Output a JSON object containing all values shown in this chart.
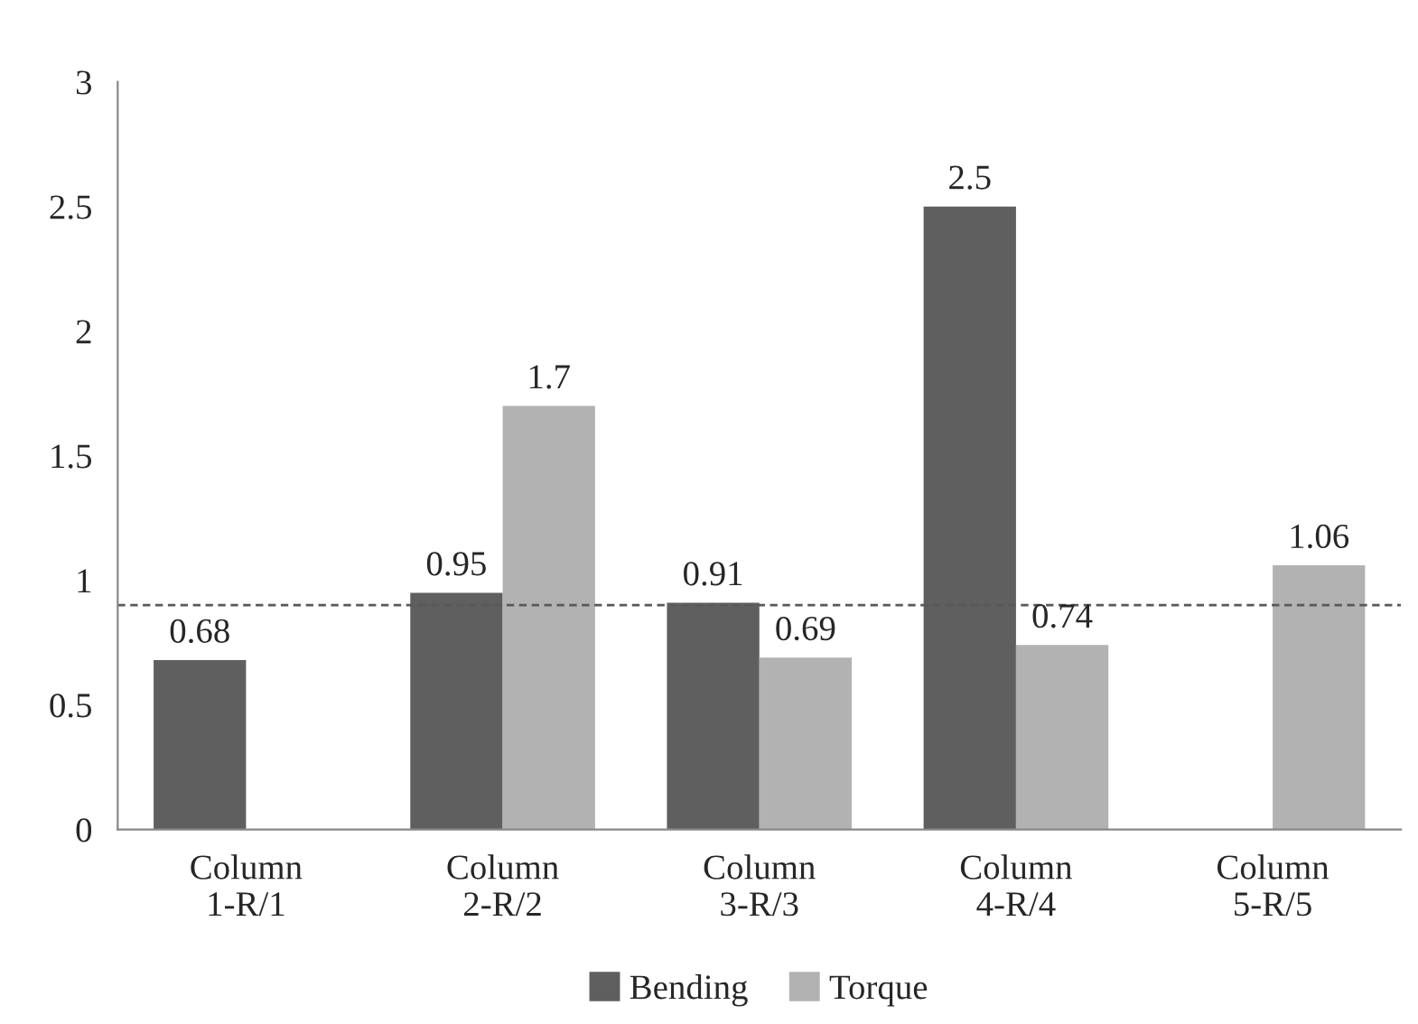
{
  "chart_data": {
    "type": "bar",
    "categories": [
      "Column\n1-R/1",
      "Column\n2-R/2",
      "Column\n3-R/3",
      "Column\n4-R/4",
      "Column\n5-R/5"
    ],
    "series": [
      {
        "name": "Bending",
        "color": "#5f5f5f",
        "values": [
          0.68,
          0.95,
          0.91,
          2.5,
          null
        ]
      },
      {
        "name": "Torque",
        "color": "#b2b2b2",
        "values": [
          null,
          1.7,
          0.69,
          0.74,
          1.06
        ]
      }
    ],
    "ylim": [
      0,
      3
    ],
    "yticks": [
      0,
      0.5,
      1,
      1.5,
      2,
      2.5,
      3
    ],
    "data_labels": true,
    "legend": "bottom",
    "grid": false,
    "ref_lines": [
      {
        "axis": "y",
        "value": 0.9,
        "color": "#595959",
        "line_style": "dashed"
      }
    ]
  }
}
